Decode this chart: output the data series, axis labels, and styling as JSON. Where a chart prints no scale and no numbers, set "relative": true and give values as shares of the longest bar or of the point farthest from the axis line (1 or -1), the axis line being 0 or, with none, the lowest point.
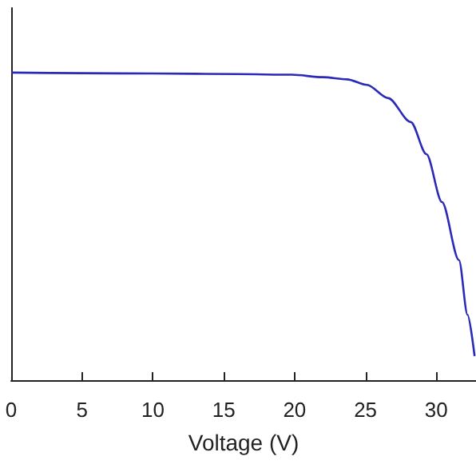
{
  "chart_data": {
    "type": "line",
    "xlabel": "Voltage (V)",
    "relative": true,
    "x": [
      0,
      5,
      10,
      16,
      19.8,
      22,
      23.7,
      25.1,
      26.6,
      28.2,
      29.3,
      30.4,
      31.6,
      32.2,
      32.7
    ],
    "series": [
      {
        "color": "#2a2ab8",
        "values": [
          1,
          0.998,
          0.997,
          0.995,
          0.993,
          0.985,
          0.978,
          0.96,
          0.917,
          0.839,
          0.735,
          0.579,
          0.39,
          0.213,
          0.078
        ]
      }
    ],
    "xlim": [
      0,
      32.8
    ],
    "xticks": [
      0,
      5,
      10,
      15,
      20,
      25,
      30
    ],
    "grid": false,
    "marker": "none",
    "line_style": "solid"
  }
}
